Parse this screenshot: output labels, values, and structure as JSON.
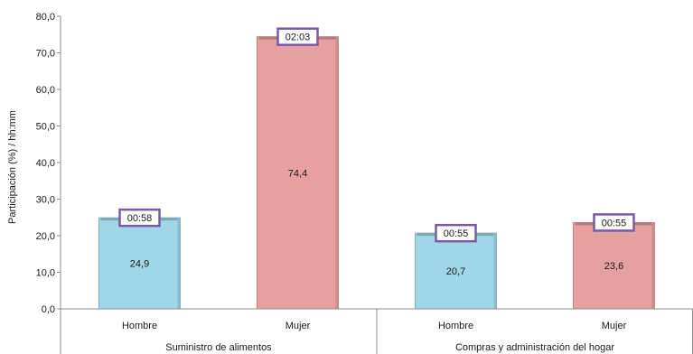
{
  "chart_data": {
    "type": "bar",
    "ylabel": "Participación (%) / hh:mm",
    "ylim": [
      0,
      80
    ],
    "y_ticks": [
      "0,0",
      "10,0",
      "20,0",
      "30,0",
      "40,0",
      "50,0",
      "60,0",
      "70,0",
      "80,0"
    ],
    "groups": [
      {
        "label": "Suministro de alimentos",
        "bars": [
          {
            "category": "Hombre",
            "value": 24.9,
            "value_label": "24,9",
            "time_label": "00:58",
            "color": "#9fd6e8"
          },
          {
            "category": "Mujer",
            "value": 74.4,
            "value_label": "74,4",
            "time_label": "02:03",
            "color": "#e6a0a0"
          }
        ]
      },
      {
        "label": "Compras y administración del hogar",
        "bars": [
          {
            "category": "Hombre",
            "value": 20.7,
            "value_label": "20,7",
            "time_label": "00:55",
            "color": "#9fd6e8"
          },
          {
            "category": "Mujer",
            "value": 23.6,
            "value_label": "23,6",
            "time_label": "00:55",
            "color": "#e6a0a0"
          }
        ]
      }
    ],
    "time_box_border_color": "#7a5aa6",
    "grid": false,
    "legend": "none"
  }
}
